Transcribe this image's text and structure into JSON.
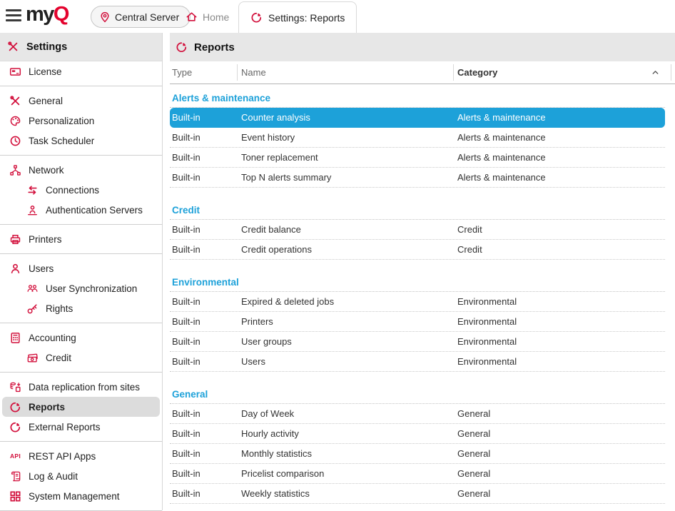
{
  "colors": {
    "brand_red": "#e4032e",
    "icon_red": "#d2103c",
    "selection_cyan": "#1da1d9",
    "group_label_blue": "#1da1d9",
    "header_bar_bg": "#e7e7e7",
    "active_item_bg": "#dcdcdc"
  },
  "topbar": {
    "logo_my": "my",
    "logo_q": "Q",
    "server_button_label": "Central Server",
    "home_tab_label": "Home",
    "active_tab_label": "Settings: Reports"
  },
  "sidebar": {
    "header_label": "Settings",
    "items": [
      {
        "label": "License",
        "icon": "license-card-icon"
      },
      {
        "divider": true
      },
      {
        "label": "General",
        "icon": "tools-icon"
      },
      {
        "label": "Personalization",
        "icon": "palette-icon"
      },
      {
        "label": "Task Scheduler",
        "icon": "clock-icon"
      },
      {
        "divider": true
      },
      {
        "label": "Network",
        "icon": "network-icon"
      },
      {
        "label": "Connections",
        "icon": "sync-arrows-icon",
        "indent": true
      },
      {
        "label": "Authentication Servers",
        "icon": "auth-person-icon",
        "indent": true
      },
      {
        "divider": true
      },
      {
        "label": "Printers",
        "icon": "printer-icon"
      },
      {
        "divider": true
      },
      {
        "label": "Users",
        "icon": "user-icon"
      },
      {
        "label": "User Synchronization",
        "icon": "user-group-icon",
        "indent": true
      },
      {
        "label": "Rights",
        "icon": "key-icon",
        "indent": true
      },
      {
        "divider": true
      },
      {
        "label": "Accounting",
        "icon": "calculator-icon"
      },
      {
        "label": "Credit",
        "icon": "banknote-icon",
        "indent": true
      },
      {
        "divider": true
      },
      {
        "label": "Data replication from sites",
        "icon": "data-replication-icon"
      },
      {
        "label": "Reports",
        "icon": "pie-chart-icon",
        "active": true
      },
      {
        "label": "External Reports",
        "icon": "pie-chart-icon"
      },
      {
        "divider": true
      },
      {
        "label": "REST API Apps",
        "icon": "api-icon"
      },
      {
        "label": "Log & Audit",
        "icon": "scroll-icon"
      },
      {
        "label": "System Management",
        "icon": "grid-icon"
      },
      {
        "divider": true
      }
    ]
  },
  "main": {
    "title": "Reports",
    "columns": {
      "type": "Type",
      "name": "Name",
      "category": "Category",
      "sorted_by": "Category",
      "sort_direction": "ascending"
    },
    "groups": [
      {
        "label": "Alerts & maintenance",
        "rows": [
          {
            "type": "Built-in",
            "name": "Counter analysis",
            "category": "Alerts & maintenance",
            "selected": true
          },
          {
            "type": "Built-in",
            "name": "Event history",
            "category": "Alerts & maintenance"
          },
          {
            "type": "Built-in",
            "name": "Toner replacement",
            "category": "Alerts & maintenance"
          },
          {
            "type": "Built-in",
            "name": "Top N alerts summary",
            "category": "Alerts & maintenance"
          }
        ]
      },
      {
        "label": "Credit",
        "rows": [
          {
            "type": "Built-in",
            "name": "Credit balance",
            "category": "Credit"
          },
          {
            "type": "Built-in",
            "name": "Credit operations",
            "category": "Credit"
          }
        ]
      },
      {
        "label": "Environmental",
        "rows": [
          {
            "type": "Built-in",
            "name": "Expired & deleted jobs",
            "category": "Environmental"
          },
          {
            "type": "Built-in",
            "name": "Printers",
            "category": "Environmental"
          },
          {
            "type": "Built-in",
            "name": "User groups",
            "category": "Environmental"
          },
          {
            "type": "Built-in",
            "name": "Users",
            "category": "Environmental"
          }
        ]
      },
      {
        "label": "General",
        "rows": [
          {
            "type": "Built-in",
            "name": "Day of Week",
            "category": "General"
          },
          {
            "type": "Built-in",
            "name": "Hourly activity",
            "category": "General"
          },
          {
            "type": "Built-in",
            "name": "Monthly statistics",
            "category": "General"
          },
          {
            "type": "Built-in",
            "name": "Pricelist comparison",
            "category": "General"
          },
          {
            "type": "Built-in",
            "name": "Weekly statistics",
            "category": "General"
          }
        ]
      }
    ]
  }
}
